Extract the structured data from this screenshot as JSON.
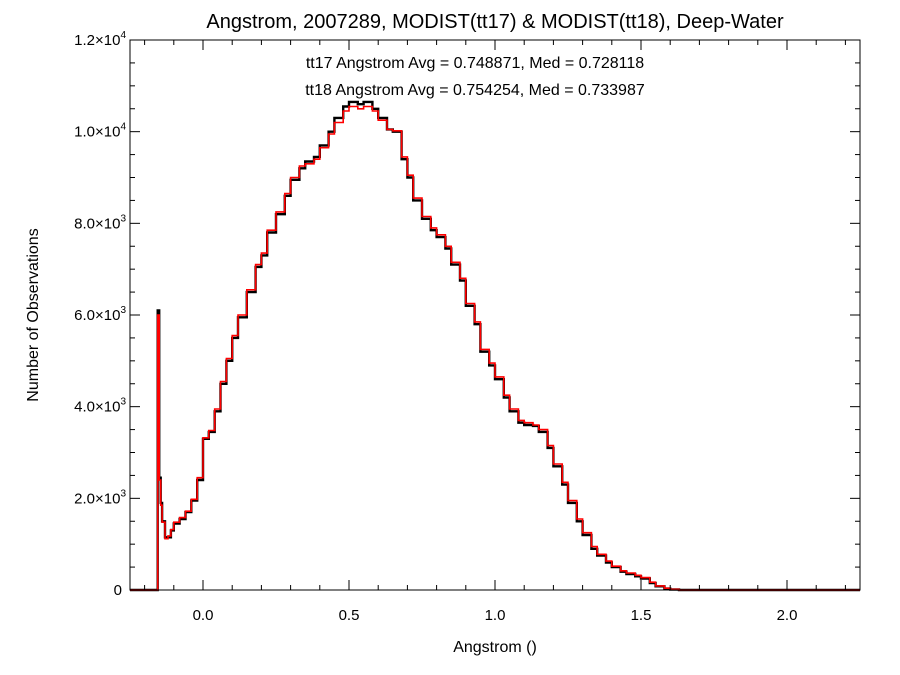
{
  "chart_data": {
    "type": "line",
    "title": "Angstrom, 2007289, MODIST(tt17) & MODIST(tt18), Deep-Water",
    "xlabel": "Angstrom ()",
    "ylabel": "Number of Observations",
    "xlim": [
      -0.25,
      2.25
    ],
    "ylim": [
      0,
      12000
    ],
    "grid": false,
    "step": true,
    "x_ticks": [
      {
        "value": 0.0,
        "label": "0.0"
      },
      {
        "value": 0.5,
        "label": "0.5"
      },
      {
        "value": 1.0,
        "label": "1.0"
      },
      {
        "value": 1.5,
        "label": "1.5"
      },
      {
        "value": 2.0,
        "label": "2.0"
      }
    ],
    "y_ticks": [
      {
        "value": 0,
        "label": "0"
      },
      {
        "value": 2000,
        "label": "2.0×10",
        "exp": "3"
      },
      {
        "value": 4000,
        "label": "4.0×10",
        "exp": "3"
      },
      {
        "value": 6000,
        "label": "6.0×10",
        "exp": "3"
      },
      {
        "value": 8000,
        "label": "8.0×10",
        "exp": "3"
      },
      {
        "value": 10000,
        "label": "1.0×10",
        "exp": "4"
      },
      {
        "value": 12000,
        "label": "1.2×10",
        "exp": "4"
      }
    ],
    "annotations": [
      {
        "text": "tt17 Angstrom Avg = 0.748871, Med = 0.728118",
        "color": "#000000"
      },
      {
        "text": "tt18 Angstrom Avg = 0.754254, Med = 0.733987",
        "color": "#ff0000"
      }
    ],
    "series": [
      {
        "color": "#000000",
        "x": [
          -0.25,
          -0.16,
          -0.155,
          -0.15,
          -0.145,
          -0.14,
          -0.13,
          -0.12,
          -0.11,
          -0.1,
          -0.08,
          -0.06,
          -0.04,
          -0.02,
          0.0,
          0.02,
          0.04,
          0.06,
          0.08,
          0.1,
          0.12,
          0.15,
          0.18,
          0.2,
          0.22,
          0.25,
          0.28,
          0.3,
          0.33,
          0.35,
          0.38,
          0.4,
          0.43,
          0.45,
          0.48,
          0.5,
          0.53,
          0.55,
          0.58,
          0.6,
          0.63,
          0.65,
          0.68,
          0.7,
          0.72,
          0.75,
          0.78,
          0.8,
          0.83,
          0.85,
          0.88,
          0.9,
          0.93,
          0.95,
          0.98,
          1.0,
          1.03,
          1.05,
          1.08,
          1.1,
          1.13,
          1.15,
          1.18,
          1.2,
          1.23,
          1.25,
          1.28,
          1.3,
          1.33,
          1.35,
          1.38,
          1.4,
          1.43,
          1.45,
          1.48,
          1.5,
          1.53,
          1.55,
          1.58,
          1.6,
          1.63,
          1.65,
          1.68,
          1.7,
          1.73,
          1.75,
          1.78,
          1.8,
          1.85,
          1.9,
          1.95,
          2.0,
          2.05,
          2.1,
          2.15,
          2.2,
          2.25
        ],
        "y": [
          0,
          0,
          6100,
          2450,
          1900,
          1500,
          1150,
          1150,
          1300,
          1450,
          1550,
          1700,
          1950,
          2400,
          3300,
          3450,
          3900,
          4500,
          5000,
          5500,
          5950,
          6500,
          7050,
          7300,
          7800,
          8200,
          8600,
          8950,
          9200,
          9350,
          9450,
          9700,
          10000,
          10300,
          10550,
          10650,
          10600,
          10650,
          10500,
          10300,
          10050,
          10000,
          9400,
          9000,
          8500,
          8100,
          7850,
          7700,
          7450,
          7100,
          6750,
          6200,
          5800,
          5200,
          4900,
          4600,
          4200,
          3900,
          3650,
          3600,
          3580,
          3450,
          3100,
          2700,
          2300,
          1900,
          1500,
          1200,
          900,
          750,
          600,
          500,
          400,
          350,
          300,
          250,
          150,
          80,
          30,
          10,
          0,
          0,
          0,
          0,
          0,
          0,
          0,
          0,
          0,
          0,
          0,
          0,
          0,
          0,
          0,
          0,
          0
        ]
      },
      {
        "color": "#ff0000",
        "x": [
          -0.25,
          -0.16,
          -0.155,
          -0.15,
          -0.145,
          -0.14,
          -0.13,
          -0.12,
          -0.11,
          -0.1,
          -0.08,
          -0.06,
          -0.04,
          -0.02,
          0.0,
          0.02,
          0.04,
          0.06,
          0.08,
          0.1,
          0.12,
          0.15,
          0.18,
          0.2,
          0.22,
          0.25,
          0.28,
          0.3,
          0.33,
          0.35,
          0.38,
          0.4,
          0.43,
          0.45,
          0.48,
          0.5,
          0.53,
          0.55,
          0.58,
          0.6,
          0.63,
          0.65,
          0.68,
          0.7,
          0.72,
          0.75,
          0.78,
          0.8,
          0.83,
          0.85,
          0.88,
          0.9,
          0.93,
          0.95,
          0.98,
          1.0,
          1.03,
          1.05,
          1.08,
          1.1,
          1.13,
          1.15,
          1.18,
          1.2,
          1.23,
          1.25,
          1.28,
          1.3,
          1.33,
          1.35,
          1.38,
          1.4,
          1.43,
          1.45,
          1.48,
          1.5,
          1.53,
          1.55,
          1.58,
          1.6,
          1.63,
          1.65,
          1.68,
          1.7,
          1.73,
          1.75,
          1.78,
          1.8,
          1.85,
          1.9,
          1.95,
          2.0,
          2.05,
          2.1,
          2.15,
          2.2,
          2.25
        ],
        "y": [
          0,
          0,
          6000,
          2400,
          1850,
          1480,
          1120,
          1180,
          1320,
          1480,
          1580,
          1720,
          1980,
          2450,
          3320,
          3480,
          3950,
          4550,
          5050,
          5550,
          6000,
          6550,
          7100,
          7350,
          7850,
          8250,
          8650,
          9000,
          9250,
          9300,
          9400,
          9650,
          9950,
          10200,
          10450,
          10550,
          10500,
          10550,
          10450,
          10250,
          10050,
          10020,
          9450,
          9050,
          8550,
          8150,
          7900,
          7750,
          7500,
          7150,
          6800,
          6250,
          5850,
          5250,
          4950,
          4650,
          4250,
          3950,
          3700,
          3650,
          3600,
          3500,
          3150,
          2750,
          2350,
          1950,
          1550,
          1250,
          950,
          780,
          630,
          520,
          420,
          370,
          320,
          270,
          170,
          90,
          40,
          15,
          0,
          0,
          0,
          0,
          0,
          0,
          0,
          0,
          0,
          0,
          0,
          0,
          0,
          0,
          0,
          0,
          0
        ]
      }
    ]
  }
}
